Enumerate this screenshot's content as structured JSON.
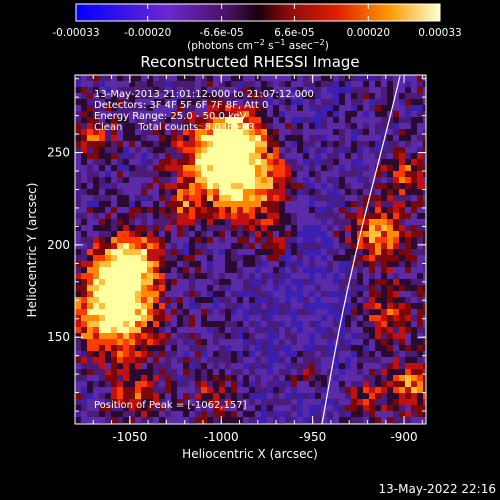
{
  "chart_data": {
    "type": "heatmap",
    "title": "Reconstructed RHESSI Image",
    "xlabel": "Heliocentric X (arcsec)",
    "ylabel": "Heliocentric Y (arcsec)",
    "xlim": [
      -1080,
      -888
    ],
    "ylim": [
      103,
      292
    ],
    "x_ticks": [
      "-1050",
      "-1000",
      "-950",
      "-900"
    ],
    "x_tick_values": [
      -1050,
      -1000,
      -950,
      -900
    ],
    "y_ticks": [
      "150",
      "200",
      "250"
    ],
    "y_tick_values": [
      150,
      200,
      250
    ],
    "colorbar": {
      "ticks": [
        "-0.00033",
        "-0.00020",
        "-6.6e-05",
        "6.6e-05",
        "0.00020",
        "0.00033"
      ],
      "tick_values": [
        -0.00033,
        -0.0002,
        -6.6e-05,
        6.6e-05,
        0.0002,
        0.00033
      ],
      "range": [
        -0.00033,
        0.00033
      ],
      "units_prefix": "(photons cm",
      "units_sup1": "−2",
      "units_mid": " s",
      "units_sup2": "−1",
      "units_mid2": " asec",
      "units_sup3": "−2",
      "units_suffix": ")",
      "colors": [
        "#0000ff",
        "#7a2cc8",
        "#3a0a1a",
        "#b01010",
        "#ff5a00",
        "#ffff80"
      ]
    },
    "annotations": {
      "time_range": "13-May-2013 21:01:12.000 to 21:07:12.000",
      "detectors": "Detectors: 3F 4F 5F 6F 7F 8F, Att 0",
      "energy_range": "Energy Range: 25.0 - 50.0 keV",
      "clean": "Clean     Total counts: 8.03E+03",
      "peak": "Position of Peak = [-1062,157]"
    },
    "footer_timestamp": "13-May-2022 22:16"
  }
}
